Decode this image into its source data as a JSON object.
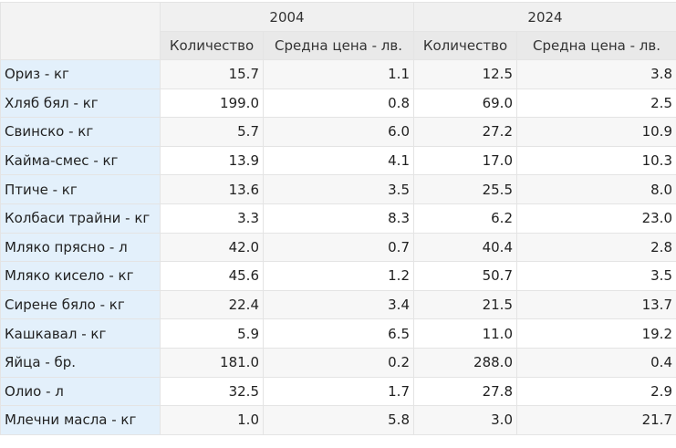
{
  "header": {
    "years": [
      "2004",
      "2024"
    ],
    "subcolumns": [
      "Количество",
      "Средна цена - лв.",
      "Количество",
      "Средна цена - лв."
    ]
  },
  "rows": [
    {
      "label": "Ориз - кг",
      "q2004": "15.7",
      "p2004": "1.1",
      "q2024": "12.5",
      "p2024": "3.8"
    },
    {
      "label": "Хляб бял - кг",
      "q2004": "199.0",
      "p2004": "0.8",
      "q2024": "69.0",
      "p2024": "2.5"
    },
    {
      "label": "Свинско - кг",
      "q2004": "5.7",
      "p2004": "6.0",
      "q2024": "27.2",
      "p2024": "10.9"
    },
    {
      "label": "Кайма-смес - кг",
      "q2004": "13.9",
      "p2004": "4.1",
      "q2024": "17.0",
      "p2024": "10.3"
    },
    {
      "label": "Птиче - кг",
      "q2004": "13.6",
      "p2004": "3.5",
      "q2024": "25.5",
      "p2024": "8.0"
    },
    {
      "label": "Колбаси трайни - кг",
      "q2004": "3.3",
      "p2004": "8.3",
      "q2024": "6.2",
      "p2024": "23.0"
    },
    {
      "label": "Мляко прясно - л",
      "q2004": "42.0",
      "p2004": "0.7",
      "q2024": "40.4",
      "p2024": "2.8"
    },
    {
      "label": "Мляко кисело - кг",
      "q2004": "45.6",
      "p2004": "1.2",
      "q2024": "50.7",
      "p2024": "3.5"
    },
    {
      "label": "Сирене бяло - кг",
      "q2004": "22.4",
      "p2004": "3.4",
      "q2024": "21.5",
      "p2024": "13.7"
    },
    {
      "label": "Кашкавал - кг",
      "q2004": "5.9",
      "p2004": "6.5",
      "q2024": "11.0",
      "p2024": "19.2"
    },
    {
      "label": "Яйца - бр.",
      "q2004": "181.0",
      "p2004": "0.2",
      "q2024": "288.0",
      "p2024": "0.4"
    },
    {
      "label": "Олио - л",
      "q2004": "32.5",
      "p2004": "1.7",
      "q2024": "27.8",
      "p2024": "2.9"
    },
    {
      "label": "Млечни масла - кг",
      "q2004": "1.0",
      "p2004": "5.8",
      "q2024": "3.0",
      "p2024": "21.7"
    }
  ]
}
